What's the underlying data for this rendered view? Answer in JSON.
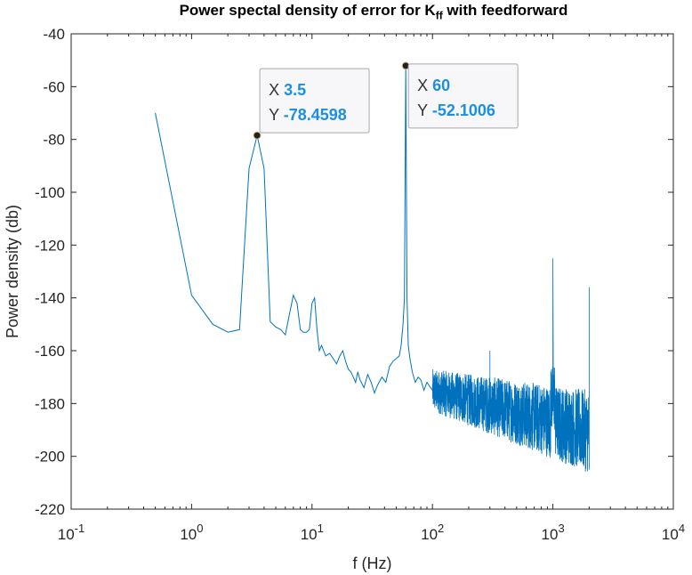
{
  "title": {
    "main": "Power spectal density of error for K",
    "subscript": "ff",
    "suffix": " with feedforward"
  },
  "colors": {
    "series": "#0072bd",
    "axis": "#262626",
    "datatip_value": "#1a8fe3",
    "datatip_bg": "#f7f7fa",
    "datatip_border": "#a9a9a9"
  },
  "chart_data": {
    "type": "line",
    "xscale": "log",
    "xlim": [
      0.1,
      10000
    ],
    "ylim": [
      -220,
      -40
    ],
    "xlabel": "f (Hz)",
    "ylabel": "Power density (db)",
    "xticks": [
      {
        "base": "10",
        "exp": "-1",
        "value": 0.1
      },
      {
        "base": "10",
        "exp": "0",
        "value": 1
      },
      {
        "base": "10",
        "exp": "1",
        "value": 10
      },
      {
        "base": "10",
        "exp": "2",
        "value": 100
      },
      {
        "base": "10",
        "exp": "3",
        "value": 1000
      },
      {
        "base": "10",
        "exp": "4",
        "value": 10000
      }
    ],
    "yticks": [
      "-40",
      "-60",
      "-80",
      "-100",
      "-120",
      "-140",
      "-160",
      "-180",
      "-200",
      "-220"
    ],
    "grid": false,
    "series": [
      {
        "x": [
          0.5,
          1.0,
          1.5,
          2.0,
          2.5,
          3.0,
          3.5,
          4.0,
          4.5,
          5.0,
          5.5,
          6.0,
          6.5,
          7.0,
          7.5,
          8.0,
          8.5,
          9.0,
          9.5,
          10.0,
          10.5,
          11.0,
          11.5,
          12.0,
          13.0,
          14.0,
          15.0,
          16.0,
          17.0,
          18.0,
          19.0,
          20.0,
          21.0,
          22.0,
          23.0,
          24.0,
          25.0,
          27.0,
          29.0,
          31.0,
          33.0,
          35.0,
          38.0,
          41.0,
          44.0,
          47.0,
          50.0,
          53.0,
          55.0,
          57.0,
          58.5,
          60.0,
          61.5,
          63.0,
          65.0,
          68.0,
          72.0,
          76.0,
          80.0,
          85.0,
          90.0,
          100.0
        ],
        "y": [
          -70,
          -139,
          -150,
          -153,
          -152,
          -91,
          -78.4598,
          -91,
          -149,
          -151,
          -152,
          -154,
          -146,
          -139,
          -142,
          -152,
          -153,
          -153,
          -152,
          -142,
          -140,
          -152,
          -160,
          -158,
          -162,
          -161,
          -163,
          -165,
          -162,
          -160,
          -164,
          -167,
          -168,
          -170,
          -172,
          -168,
          -171,
          -174,
          -169,
          -172,
          -176,
          -173,
          -170,
          -172,
          -166,
          -164,
          -163,
          -162,
          -158,
          -150,
          -140,
          -52.1006,
          -140,
          -158,
          -163,
          -168,
          -172,
          -170,
          -171,
          -175,
          -172,
          -175
        ]
      }
    ],
    "datatips": [
      {
        "x_label": "X",
        "x_value": "3.5",
        "y_label": "Y",
        "y_value": "-78.4598",
        "x": 3.5,
        "y": -78.4598
      },
      {
        "x_label": "X",
        "x_value": "60",
        "y_label": "Y",
        "y_value": "-52.1006",
        "x": 60,
        "y": -52.1006
      }
    ]
  }
}
